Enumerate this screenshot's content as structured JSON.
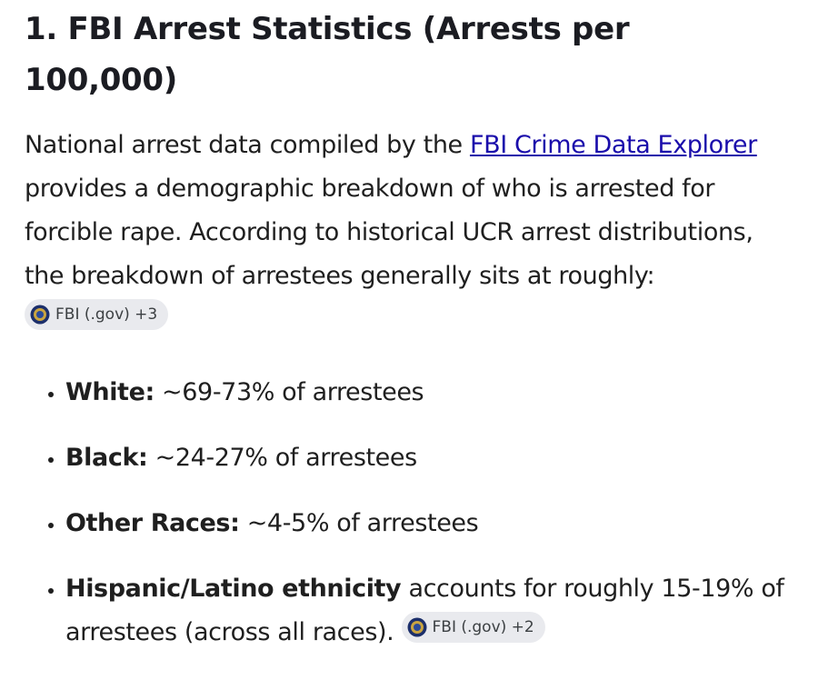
{
  "heading": "1. FBI Arrest Statistics (Arrests per 100,000)",
  "paragraph": {
    "before": "National arrest data compiled by the ",
    "link": "FBI Crime Data Explorer",
    "after": " provides a demographic breakdown of who is arrested for forcible rape. According to historical UCR arrest distributions, the breakdown of arrestees generally sits at roughly:",
    "chip": "FBI (.gov) +3"
  },
  "list": [
    {
      "label": "White:",
      "text": " ~69-73% of arrestees"
    },
    {
      "label": "Black:",
      "text": " ~24-27% of arrestees"
    },
    {
      "label": "Other Races:",
      "text": " ~4-5% of arrestees"
    },
    {
      "label": "Hispanic/Latino ethnicity",
      "text": " accounts for roughly 15-19% of arrestees (across all races).",
      "chip": "FBI (.gov) +2"
    }
  ]
}
